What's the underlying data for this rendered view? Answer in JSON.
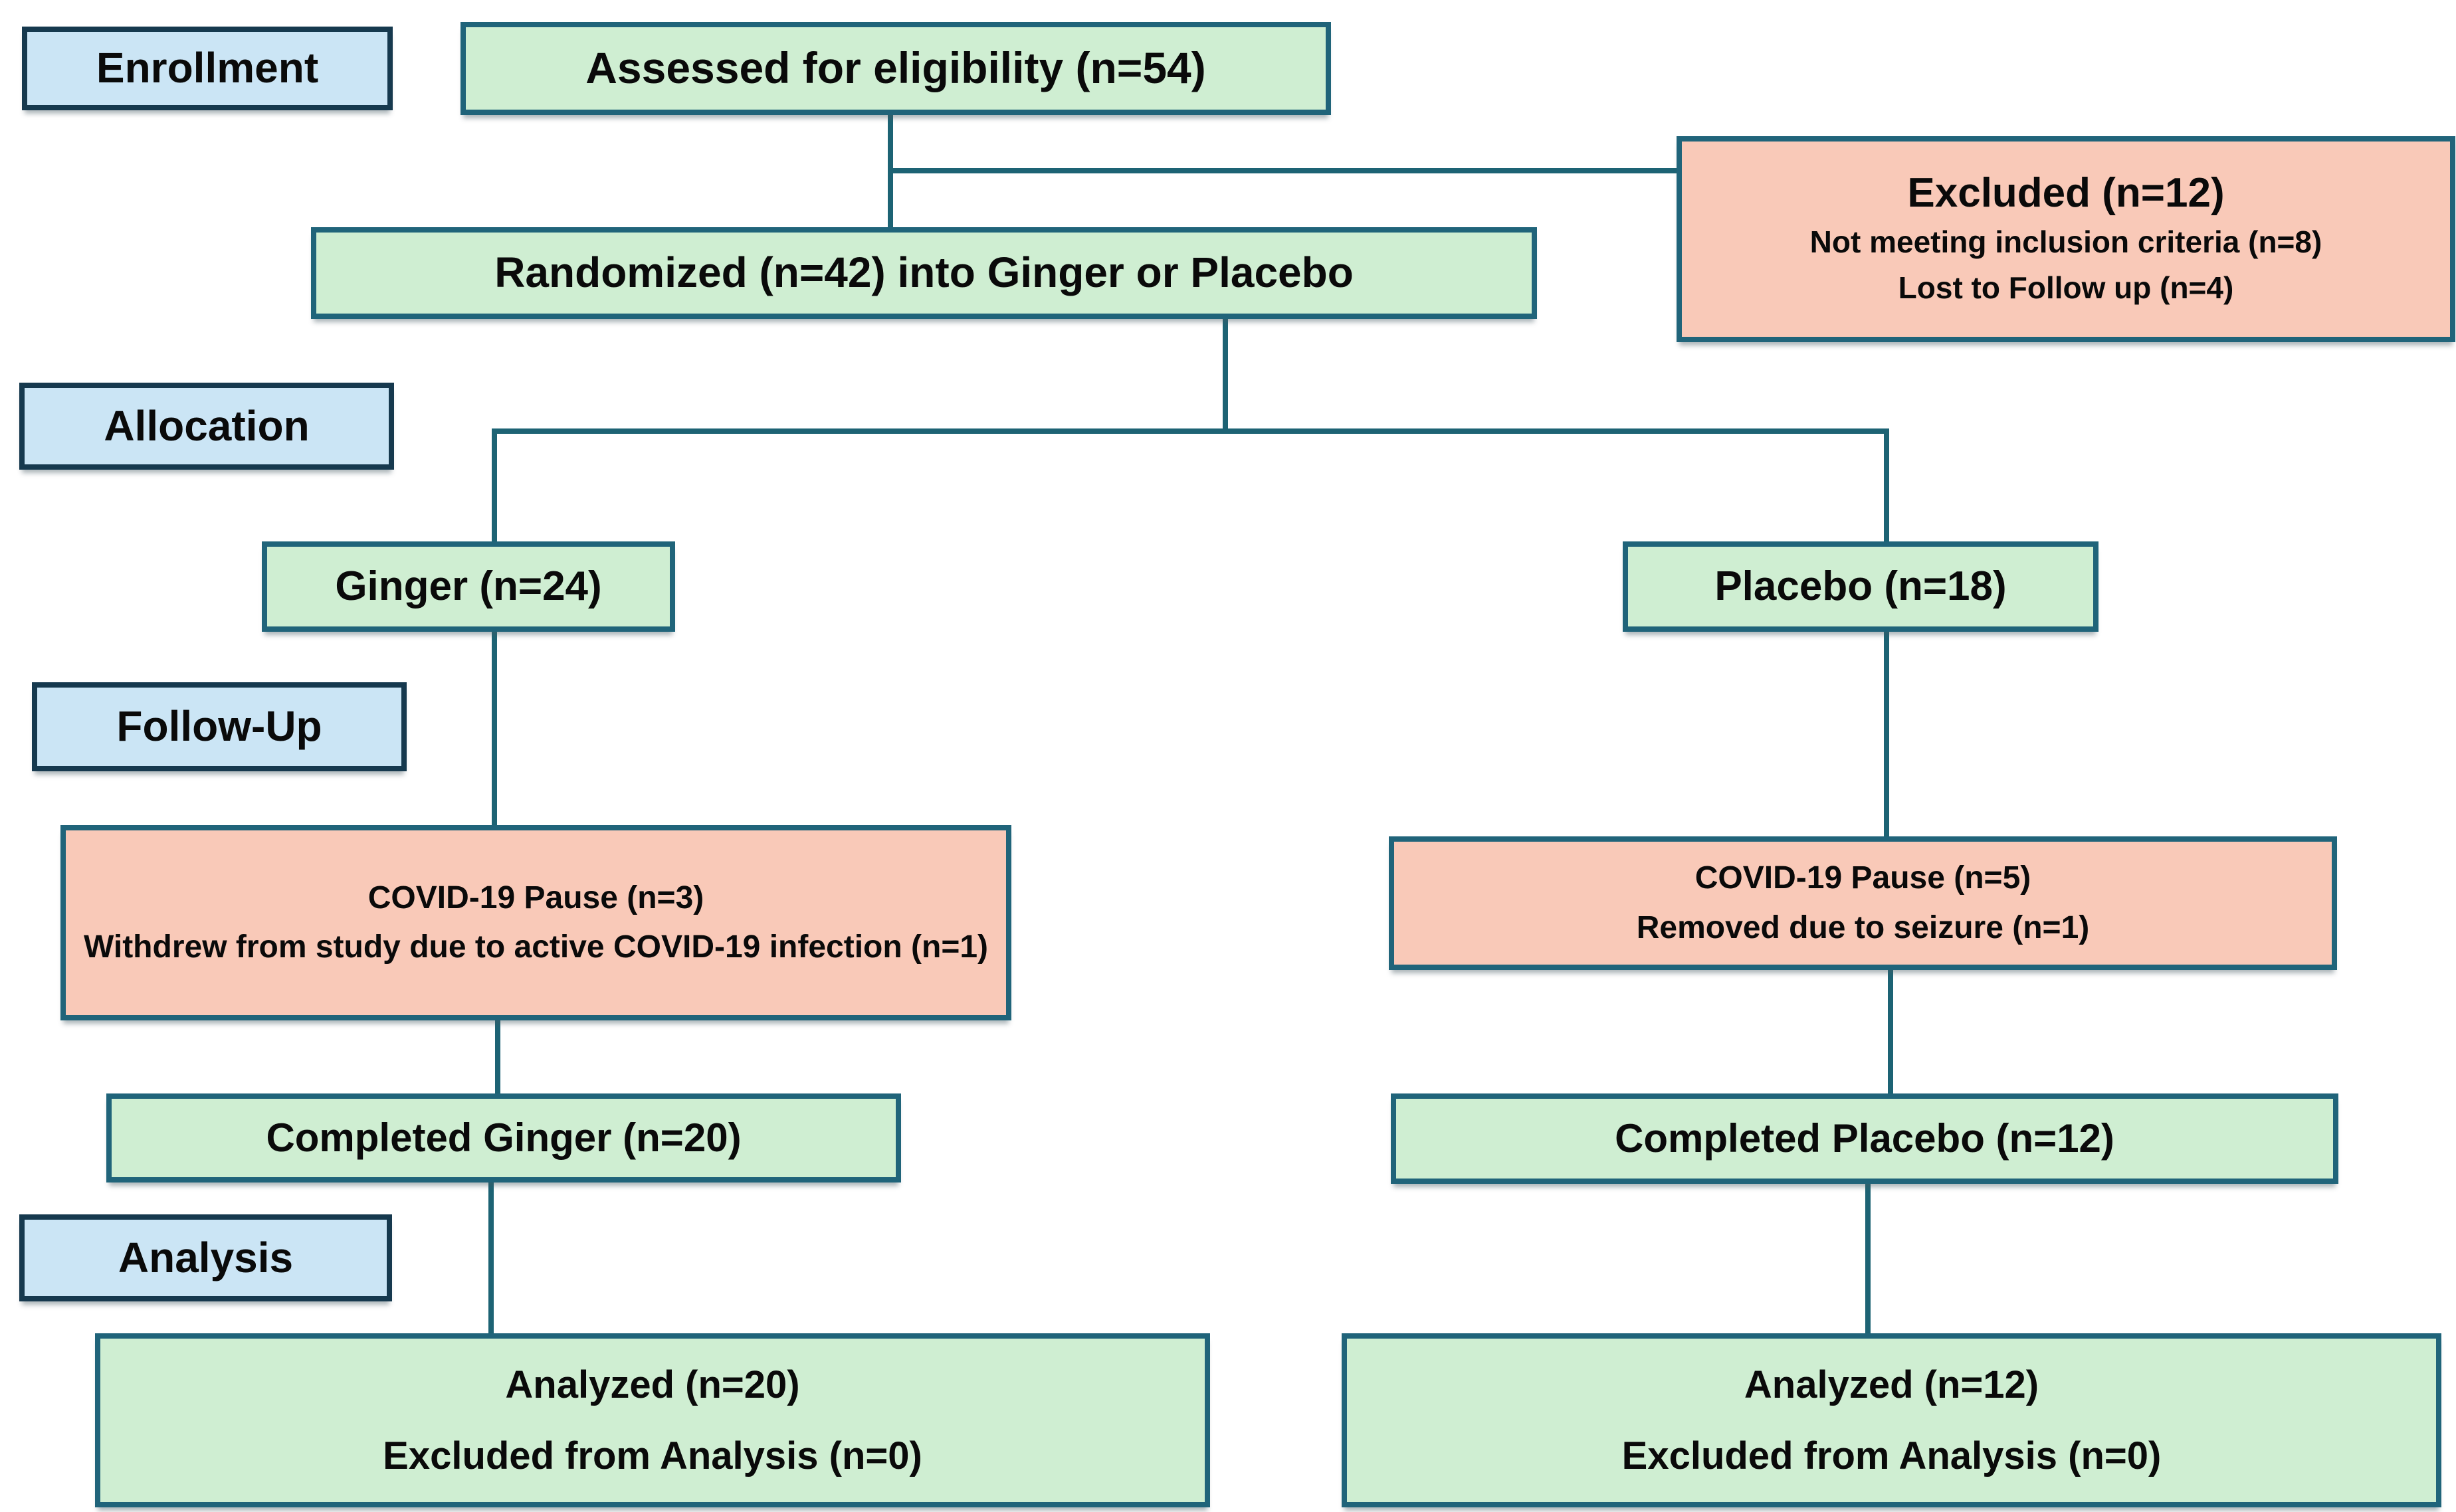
{
  "diagram": {
    "type": "consort-flowchart",
    "stages": {
      "enrollment": "Enrollment",
      "allocation": "Allocation",
      "followup": "Follow-Up",
      "analysis": "Analysis"
    },
    "boxes": {
      "assessed": {
        "text": "Assessed for eligibility (n=54)"
      },
      "excluded": {
        "title": "Excluded (n=12)",
        "reason1": "Not meeting inclusion criteria (n=8)",
        "reason2": "Lost to Follow up (n=4)"
      },
      "randomized": {
        "text": "Randomized (n=42) into Ginger or Placebo"
      },
      "ginger": {
        "text": "Ginger (n=24)"
      },
      "placebo": {
        "text": "Placebo (n=18)"
      },
      "covid_ginger": {
        "line1": "COVID-19 Pause (n=3)",
        "line2": "Withdrew from study due to active COVID-19 infection (n=1)"
      },
      "covid_placebo": {
        "line1": "COVID-19 Pause (n=5)",
        "line2": "Removed due to seizure (n=1)"
      },
      "completed_ginger": {
        "text": "Completed Ginger (n=20)"
      },
      "completed_placebo": {
        "text": "Completed Placebo (n=12)"
      },
      "analyzed_ginger": {
        "line1": "Analyzed (n=20)",
        "line2": "Excluded from Analysis (n=0)"
      },
      "analyzed_placebo": {
        "line1": "Analyzed (n=12)",
        "line2": "Excluded from Analysis (n=0)"
      }
    },
    "colors": {
      "stage_fill": "#cbe5f5",
      "flow_fill_green": "#cfeed2",
      "exclusion_fill_salmon": "#f9c9b8",
      "border_teal": "#20647a",
      "border_navy": "#16394e",
      "connector": "#1d6374",
      "text": "#0a0a0a",
      "background": "#ffffff"
    }
  }
}
